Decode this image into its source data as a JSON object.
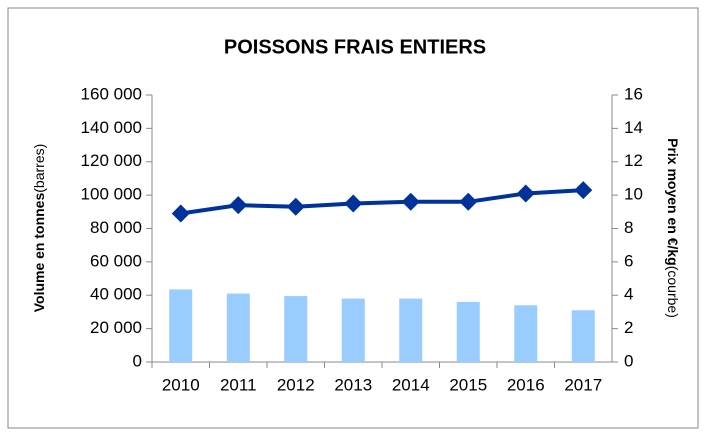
{
  "chart_data": {
    "type": "bar_line",
    "title": "POISSONS FRAIS ENTIERS",
    "y_label": "Volume en tonnes",
    "y_label_note": "(barres)",
    "y2_label": "Prix moyen en €/kg",
    "y2_label_note": "(courbe)",
    "categories": [
      "2010",
      "2011",
      "2012",
      "2013",
      "2014",
      "2015",
      "2016",
      "2017"
    ],
    "series": [
      {
        "type": "bar",
        "color": "#99ccff",
        "values": [
          43500,
          41000,
          39500,
          38000,
          38000,
          36000,
          34000,
          31000
        ]
      },
      {
        "type": "line",
        "axis": "y2",
        "color": "#003399",
        "values": [
          8.9,
          9.4,
          9.3,
          9.5,
          9.6,
          9.6,
          10.1,
          10.3
        ]
      }
    ],
    "ylim": [
      0,
      160000
    ],
    "yticks": [
      {
        "value": 0,
        "label": "0"
      },
      {
        "value": 20000,
        "label": "20 000"
      },
      {
        "value": 40000,
        "label": "40 000"
      },
      {
        "value": 60000,
        "label": "60 000"
      },
      {
        "value": 80000,
        "label": "80 000"
      },
      {
        "value": 100000,
        "label": "100 000"
      },
      {
        "value": 120000,
        "label": "120 000"
      },
      {
        "value": 140000,
        "label": "140 000"
      },
      {
        "value": 160000,
        "label": "160 000"
      }
    ],
    "y2lim": [
      0,
      16
    ],
    "y2ticks": [
      0,
      2,
      4,
      6,
      8,
      10,
      12,
      14,
      16
    ],
    "grid": false
  }
}
